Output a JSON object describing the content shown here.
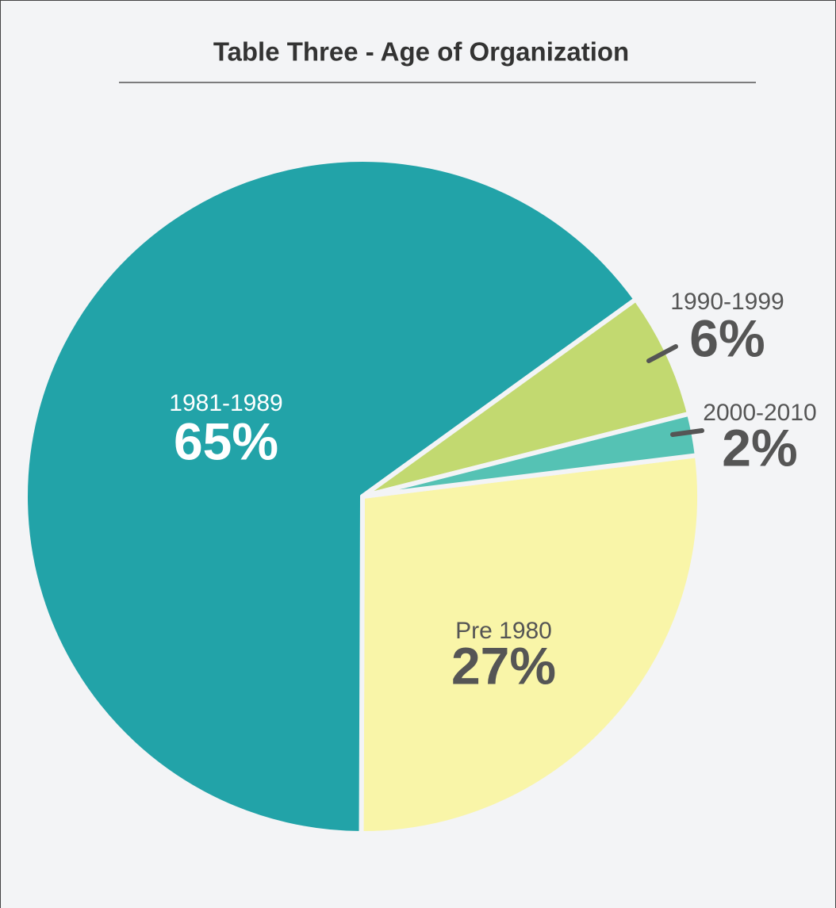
{
  "chart_data": {
    "type": "pie",
    "title": "Table Three - Age of Organization",
    "categories": [
      "Pre 1980",
      "1981-1989",
      "1990-1999",
      "2000-2010"
    ],
    "values": [
      27,
      65,
      6,
      2
    ],
    "value_labels": [
      "27%",
      "65%",
      "6%",
      "2%"
    ],
    "colors": [
      "#f9f5a8",
      "#22a3a8",
      "#c2d970",
      "#55c2b4"
    ]
  }
}
